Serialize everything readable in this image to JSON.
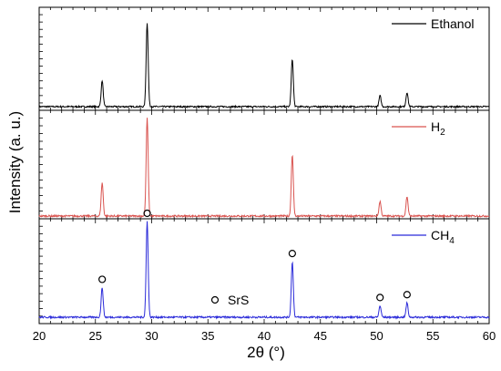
{
  "chart_data": {
    "type": "line",
    "xlabel_main": "2θ (",
    "xlabel_unit": "°",
    "xlabel_tail": ")",
    "ylabel": "Intensity (a. u.)",
    "xlim": [
      20,
      60
    ],
    "x_ticks": [
      20,
      25,
      30,
      35,
      40,
      45,
      50,
      55,
      60
    ],
    "grid": false,
    "panels": [
      {
        "legend": {
          "text": "Ethanol",
          "sub": ""
        },
        "color": "#000000",
        "peaks": [
          {
            "x": 25.6,
            "height": 0.31
          },
          {
            "x": 29.6,
            "height": 1.0
          },
          {
            "x": 42.5,
            "height": 0.57
          },
          {
            "x": 50.3,
            "height": 0.13
          },
          {
            "x": 52.7,
            "height": 0.17
          }
        ]
      },
      {
        "legend": {
          "text": "H",
          "sub": "2"
        },
        "color": "#d9534f",
        "peaks": [
          {
            "x": 25.6,
            "height": 0.34
          },
          {
            "x": 29.6,
            "height": 1.0
          },
          {
            "x": 42.5,
            "height": 0.63
          },
          {
            "x": 50.3,
            "height": 0.15
          },
          {
            "x": 52.7,
            "height": 0.2
          }
        ]
      },
      {
        "legend": {
          "text": "CH",
          "sub": "4"
        },
        "color": "#2b2bd9",
        "peaks": [
          {
            "x": 25.6,
            "height": 0.31
          },
          {
            "x": 29.6,
            "height": 1.0
          },
          {
            "x": 42.5,
            "height": 0.58
          },
          {
            "x": 50.3,
            "height": 0.12
          },
          {
            "x": 52.7,
            "height": 0.15
          }
        ],
        "markers": [
          25.6,
          29.6,
          42.5,
          50.3,
          52.7
        ]
      }
    ],
    "annotation": {
      "symbol": "o",
      "label": "SrS"
    }
  }
}
